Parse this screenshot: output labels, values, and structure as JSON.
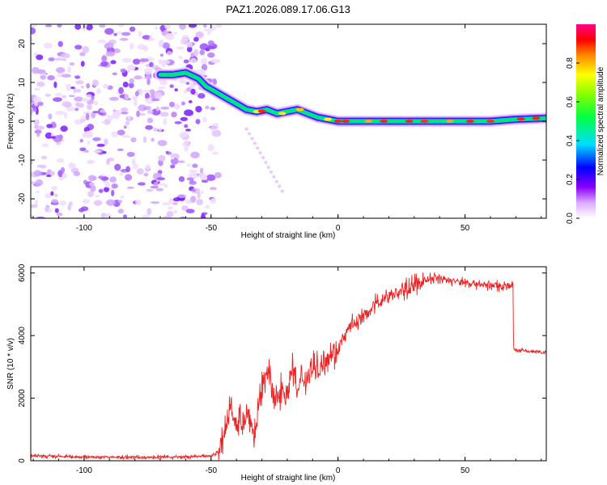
{
  "chart_data": [
    {
      "type": "heatmap",
      "title": "PAZ1.2026.089.17.06.G13",
      "xlabel": "Height of straight line (km)",
      "ylabel": "Frequency (Hz)",
      "xlim": [
        -121,
        82
      ],
      "ylim": [
        -25,
        25
      ],
      "x_ticks": [
        -100,
        -50,
        0,
        50
      ],
      "x_tick_labels": [
        "-100",
        "-50",
        "0",
        "50"
      ],
      "y_ticks": [
        20,
        10,
        0,
        -10,
        -20
      ],
      "y_tick_labels": [
        "20",
        "10",
        "0",
        "-10",
        "-20"
      ],
      "ridge": {
        "name": "dominant frequency track",
        "x": [
          -70,
          -65,
          -60,
          -55,
          -52,
          -48,
          -44,
          -40,
          -36,
          -32,
          -28,
          -24,
          -20,
          -16,
          -12,
          -8,
          -4,
          0,
          10,
          20,
          30,
          40,
          50,
          60,
          70,
          82
        ],
        "y": [
          12,
          12,
          12.5,
          11,
          9,
          7.5,
          6,
          4.5,
          3,
          2.5,
          3,
          2,
          2.5,
          3,
          2,
          1,
          0.5,
          0,
          0,
          0,
          0,
          0,
          0,
          0,
          0.5,
          0.8
        ]
      },
      "noise_region_x": [
        -121,
        -47
      ],
      "colorbar": {
        "label": "Normalized spectral amplitude",
        "ticks": [
          0.0,
          0.2,
          0.4,
          0.6,
          0.8
        ],
        "tick_labels": [
          "0.0",
          "0.2",
          "0.4",
          "0.6",
          "0.8"
        ]
      }
    },
    {
      "type": "line",
      "xlabel": "Height of straight line (km)",
      "ylabel": "SNR (10 * v/v)",
      "xlim": [
        -121,
        82
      ],
      "ylim": [
        0,
        6200
      ],
      "x_ticks": [
        -100,
        -50,
        0,
        50
      ],
      "x_tick_labels": [
        "-100",
        "-50",
        "0",
        "50"
      ],
      "y_ticks": [
        0,
        2000,
        4000,
        6000
      ],
      "y_tick_labels": [
        "0",
        "2000",
        "4000",
        "6000"
      ],
      "series": [
        {
          "name": "SNR",
          "color": "#ee2222",
          "x": [
            -121,
            -100,
            -80,
            -60,
            -50,
            -47,
            -45,
            -43,
            -42,
            -40,
            -38,
            -35,
            -33,
            -30,
            -28,
            -25,
            -22,
            -20,
            -18,
            -16,
            -14,
            -12,
            -10,
            -8,
            -5,
            0,
            5,
            10,
            15,
            20,
            25,
            30,
            35,
            40,
            45,
            50,
            55,
            60,
            65,
            68.9,
            69.1,
            75,
            82
          ],
          "y": [
            150,
            120,
            110,
            120,
            160,
            280,
            700,
            1500,
            2000,
            900,
            1300,
            1500,
            700,
            2300,
            3000,
            1800,
            2400,
            2000,
            3200,
            2100,
            2700,
            2600,
            3000,
            2900,
            3300,
            3600,
            4300,
            4600,
            5000,
            5300,
            5400,
            5600,
            5800,
            5850,
            5750,
            5700,
            5650,
            5600,
            5600,
            5600,
            3550,
            3500,
            3450
          ]
        }
      ]
    }
  ],
  "colors": {
    "snr_line": "#ee2222",
    "axis": "#000000"
  }
}
